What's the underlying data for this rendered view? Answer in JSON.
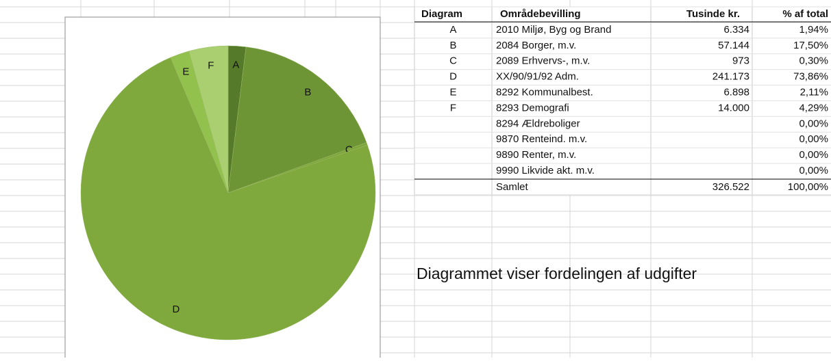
{
  "chart_data": {
    "type": "pie",
    "categories": [
      "A",
      "B",
      "C",
      "D",
      "E",
      "F"
    ],
    "values": [
      1.94,
      17.5,
      0.3,
      73.86,
      2.11,
      4.29
    ],
    "colors": [
      "#557a2a",
      "#6e9535",
      "#7ea63c",
      "#7fa83d",
      "#93c14d",
      "#a9cf70"
    ]
  },
  "table": {
    "header": [
      "Diagram",
      "Områdebevilling",
      "Tusinde kr.",
      "% af total"
    ],
    "rows": [
      [
        "A",
        "2010 Miljø, Byg og Brand",
        "6.334",
        "1,94%"
      ],
      [
        "B",
        "2084 Borger, m.v.",
        "57.144",
        "17,50%"
      ],
      [
        "C",
        "2089 Erhvervs-, m.v.",
        "973",
        "0,30%"
      ],
      [
        "D",
        "XX/90/91/92 Adm.",
        "241.173",
        "73,86%"
      ],
      [
        "E",
        "8292 Kommunalbest.",
        "6.898",
        "2,11%"
      ],
      [
        "F",
        "8293 Demografi",
        "14.000",
        "4,29%"
      ],
      [
        null,
        "8294 Ældreboliger",
        null,
        "0,00%"
      ],
      [
        null,
        "9870 Renteind. m.v.",
        null,
        "0,00%"
      ],
      [
        null,
        "9890 Renter, m.v.",
        null,
        "0,00%"
      ],
      [
        null,
        "9990 Likvide akt. m.v.",
        null,
        "0,00%"
      ]
    ],
    "total": [
      null,
      "Samlet",
      "326.522",
      "100,00%"
    ]
  },
  "caption": "Diagrammet viser fordelingen af udgifter"
}
